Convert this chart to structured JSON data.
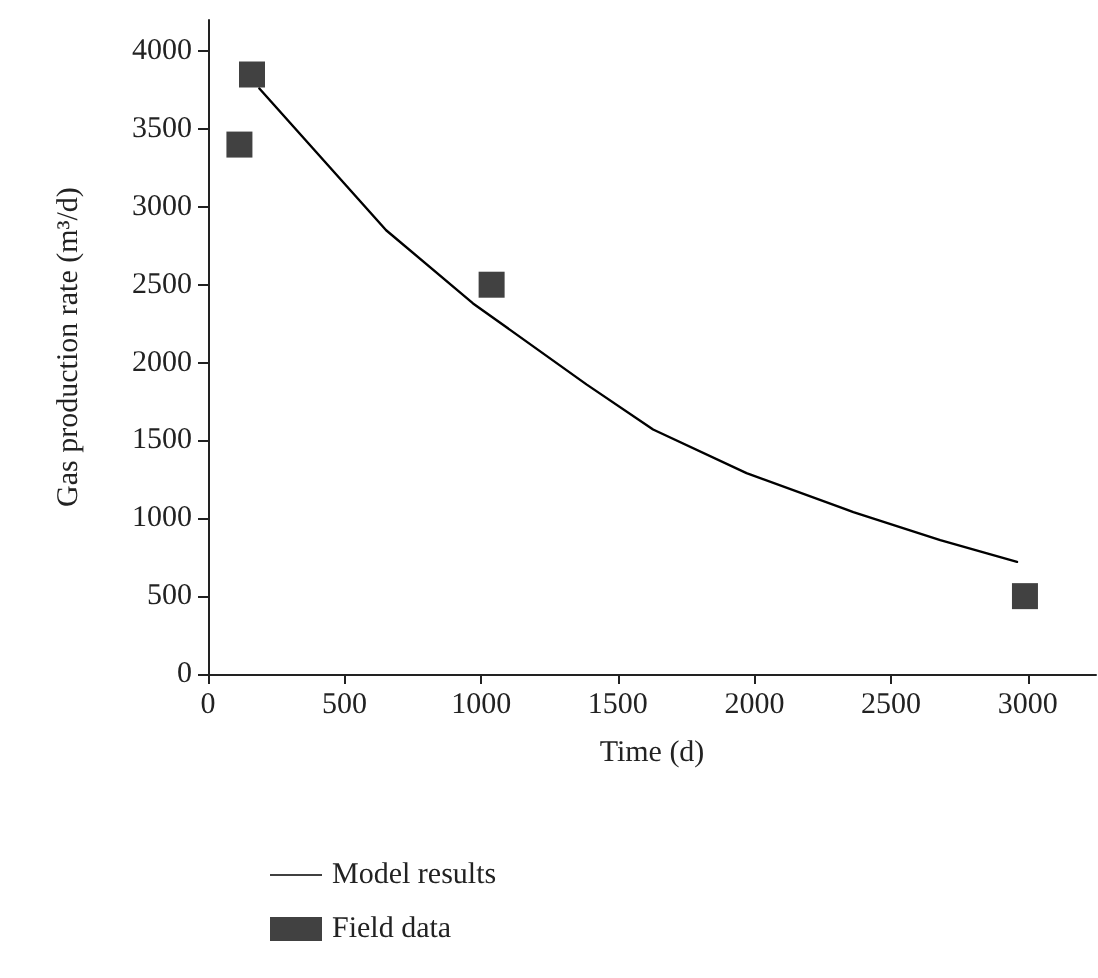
{
  "chart_data": {
    "type": "scatter",
    "xlabel": "Time (d)",
    "ylabel": "Gas production rate (m³/d)",
    "xlim": [
      0,
      3250
    ],
    "xticks": [
      0,
      500,
      1000,
      1500,
      2000,
      2500,
      3000
    ],
    "ylim": [
      0,
      4200
    ],
    "yticks": [
      0,
      500,
      1000,
      1500,
      2000,
      2500,
      3000,
      3500,
      4000
    ],
    "grid": false,
    "legend": "bottom",
    "series": [
      {
        "name": "Model results",
        "type": "line",
        "color": "#000000",
        "marker": "none",
        "line_style": "solid",
        "x": [
          188,
          652,
          970,
          1385,
          1629,
          1971,
          2362,
          2680,
          2961
        ],
        "values": [
          3760,
          2850,
          2380,
          1860,
          1570,
          1290,
          1040,
          860,
          720
        ]
      },
      {
        "name": "Field data",
        "color": "#111111",
        "marker": "square",
        "x": [
          115,
          161,
          1038,
          2990
        ],
        "values": [
          3400,
          3850,
          2500,
          500
        ]
      }
    ]
  }
}
